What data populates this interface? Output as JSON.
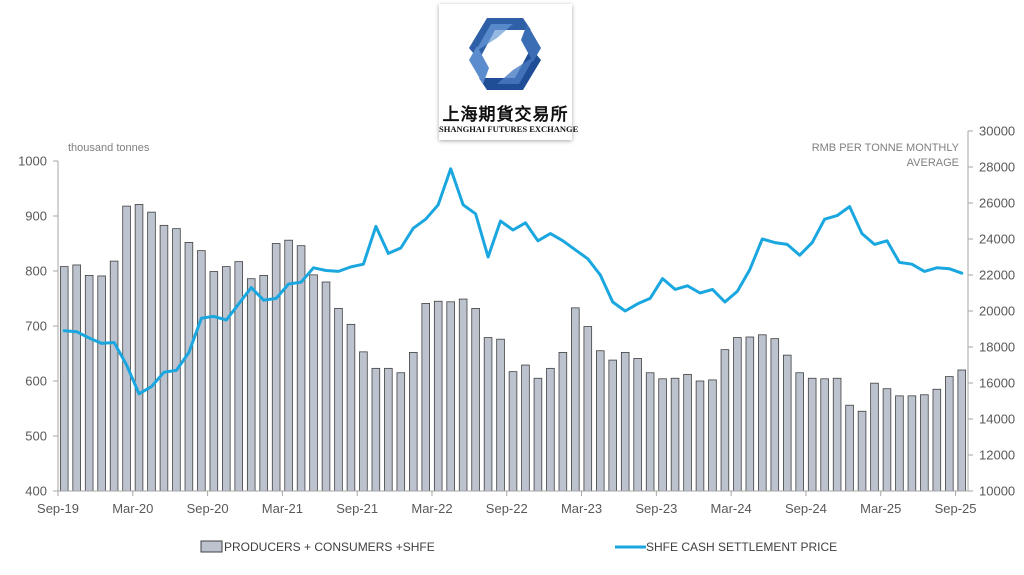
{
  "logo": {
    "chinese_name": "上海期貨交易所",
    "english_name": "SHANGHAI FUTURES EXCHANGE"
  },
  "chart_data": {
    "type": "bar+line",
    "title": "",
    "left_axis_label": "thousand tonnes",
    "right_axis_label": "RMB PER TONNE MONTHLY AVERAGE",
    "y_left_lim": [
      400,
      1000
    ],
    "y_left_ticks": [
      400,
      500,
      600,
      700,
      800,
      900,
      1000
    ],
    "y_right_lim": [
      10000,
      30000
    ],
    "y_right_ticks": [
      10000,
      12000,
      14000,
      16000,
      18000,
      20000,
      22000,
      24000,
      26000,
      28000,
      30000
    ],
    "x_ticks": [
      "Sep-19",
      "Mar-20",
      "Sep-20",
      "Mar-21",
      "Sep-21",
      "Mar-22",
      "Sep-22",
      "Mar-23",
      "Sep-23",
      "Mar-24",
      "Sep-24",
      "Mar-25",
      "Sep-25"
    ],
    "grid": false,
    "legend_position": "bottom",
    "colors": {
      "bars": "#bcc3cf",
      "bar_edge": "#404040",
      "line": "#1aa7e0",
      "axis": "#a6a6a6"
    },
    "series": [
      {
        "name": "PRODUCERS + CONSUMERS +SHFE",
        "type": "bar",
        "axis": "left",
        "values": [
          808,
          811,
          792,
          791,
          818,
          918,
          921,
          907,
          883,
          877,
          852,
          837,
          799,
          808,
          817,
          786,
          792,
          850,
          856,
          846,
          793,
          780,
          732,
          703,
          653,
          623,
          623,
          615,
          652,
          741,
          745,
          744,
          749,
          732,
          679,
          676,
          617,
          629,
          605,
          623,
          652,
          733,
          699,
          655,
          638,
          652,
          641,
          615,
          604,
          605,
          612,
          600,
          602,
          657,
          679,
          680,
          684,
          677,
          647,
          615,
          605,
          604,
          605,
          556,
          545,
          596,
          586,
          573,
          573,
          575,
          585,
          608,
          620
        ]
      },
      {
        "name": "SHFE CASH SETTLEMENT PRICE",
        "type": "line",
        "axis": "right",
        "values": [
          18900,
          18850,
          18500,
          18200,
          18250,
          17000,
          15400,
          15800,
          16600,
          16700,
          17700,
          19600,
          19700,
          19500,
          20400,
          21300,
          20600,
          20700,
          21500,
          21600,
          22400,
          22250,
          22200,
          22450,
          22600,
          24700,
          23200,
          23500,
          24600,
          25100,
          25900,
          27900,
          25900,
          25400,
          23000,
          25000,
          24500,
          24900,
          23900,
          24300,
          23900,
          23400,
          22900,
          22000,
          20500,
          20000,
          20400,
          20700,
          21800,
          21200,
          21400,
          21000,
          21200,
          20500,
          21100,
          22300,
          24000,
          23800,
          23700,
          23100,
          23800,
          25100,
          25300,
          25800,
          24300,
          23700,
          23900,
          22700,
          22600,
          22200,
          22400,
          22350,
          22100
        ]
      }
    ]
  }
}
